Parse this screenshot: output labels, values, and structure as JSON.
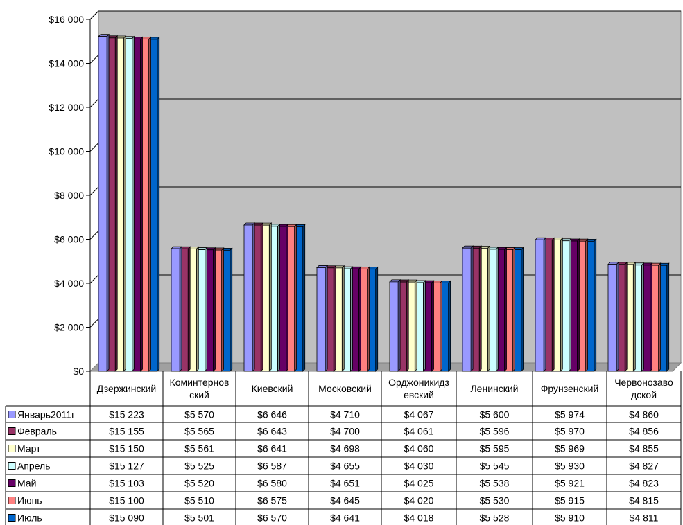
{
  "chart_data": {
    "type": "bar",
    "categories": [
      [
        "Дзержинский"
      ],
      [
        "Коминтернов",
        "ский"
      ],
      [
        "Киевский"
      ],
      [
        "Московский"
      ],
      [
        "Орджоникидз",
        "евский"
      ],
      [
        "Ленинский"
      ],
      [
        "Фрунзенский"
      ],
      [
        "Червонозаво",
        "дской"
      ]
    ],
    "series": [
      {
        "name": "Январь2011г",
        "color": "#9999FF",
        "values": [
          15223,
          5570,
          6646,
          4710,
          4067,
          5600,
          5974,
          4860
        ],
        "labels": [
          "$15 223",
          "$5 570",
          "$6 646",
          "$4 710",
          "$4 067",
          "$5 600",
          "$5 974",
          "$4 860"
        ]
      },
      {
        "name": "Февраль",
        "color": "#993366",
        "values": [
          15155,
          5565,
          6643,
          4700,
          4061,
          5596,
          5970,
          4856
        ],
        "labels": [
          "$15 155",
          "$5 565",
          "$6 643",
          "$4 700",
          "$4 061",
          "$5 596",
          "$5 970",
          "$4 856"
        ]
      },
      {
        "name": "Март",
        "color": "#FFFFCC",
        "values": [
          15150,
          5561,
          6641,
          4698,
          4060,
          5595,
          5969,
          4855
        ],
        "labels": [
          "$15 150",
          "$5 561",
          "$6 641",
          "$4 698",
          "$4 060",
          "$5 595",
          "$5 969",
          "$4 855"
        ]
      },
      {
        "name": "Апрель",
        "color": "#CCFFFF",
        "values": [
          15127,
          5525,
          6587,
          4655,
          4030,
          5545,
          5930,
          4827
        ],
        "labels": [
          "$15 127",
          "$5 525",
          "$6 587",
          "$4 655",
          "$4 030",
          "$5 545",
          "$5 930",
          "$4 827"
        ]
      },
      {
        "name": "Май",
        "color": "#660066",
        "values": [
          15103,
          5520,
          6580,
          4651,
          4025,
          5538,
          5921,
          4823
        ],
        "labels": [
          "$15 103",
          "$5 520",
          "$6 580",
          "$4 651",
          "$4 025",
          "$5 538",
          "$5 921",
          "$4 823"
        ]
      },
      {
        "name": "Июнь",
        "color": "#FF8080",
        "values": [
          15100,
          5510,
          6575,
          4645,
          4020,
          5530,
          5915,
          4815
        ],
        "labels": [
          "$15 100",
          "$5 510",
          "$6 575",
          "$4 645",
          "$4 020",
          "$5 530",
          "$5 915",
          "$4 815"
        ]
      },
      {
        "name": "Июль",
        "color": "#0066CC",
        "values": [
          15090,
          5501,
          6570,
          4641,
          4018,
          5528,
          5910,
          4811
        ],
        "labels": [
          "$15 090",
          "$5 501",
          "$6 570",
          "$4 641",
          "$4 018",
          "$5 528",
          "$5 910",
          "$4 811"
        ]
      }
    ],
    "ylim": [
      0,
      16000
    ],
    "yticks": [
      {
        "value": 0,
        "label": "$0"
      },
      {
        "value": 2000,
        "label": "$2 000"
      },
      {
        "value": 4000,
        "label": "$4 000"
      },
      {
        "value": 6000,
        "label": "$6 000"
      },
      {
        "value": 8000,
        "label": "$8 000"
      },
      {
        "value": 10000,
        "label": "$10 000"
      },
      {
        "value": 12000,
        "label": "$12 000"
      },
      {
        "value": 14000,
        "label": "$14 000"
      },
      {
        "value": 16000,
        "label": "$16 000"
      }
    ],
    "grid": true,
    "legend": "data-table",
    "plot_background": "#C0C0C0"
  }
}
